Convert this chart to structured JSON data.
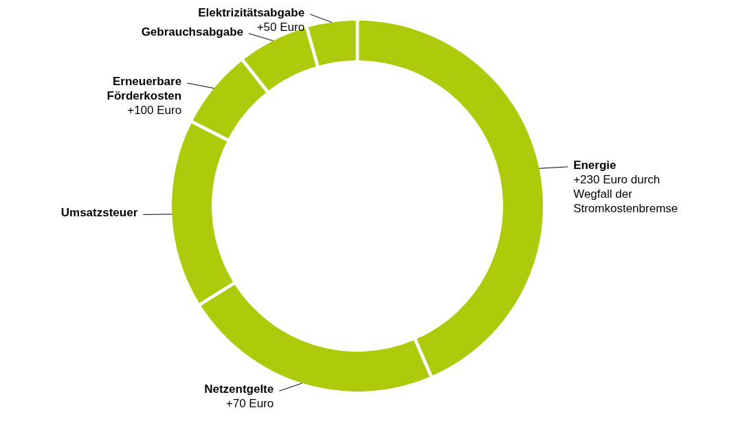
{
  "chart_data": {
    "type": "donut",
    "categories": [
      "Energie",
      "Netzentgelte",
      "Umsatzsteuer",
      "Erneuerbare Förderkosten",
      "Gebrauchsabgabe",
      "Elektrizitätsabgabe"
    ],
    "values": [
      43.5,
      22.6,
      16.4,
      6.9,
      6.2,
      4.4
    ],
    "colors": [
      "#afca0b",
      "#afca0b",
      "#afca0b",
      "#afca0b",
      "#afca0b",
      "#afca0b"
    ],
    "annotations": [
      {
        "text": "+230 Euro durch Wegfall der Stromkostenbremse",
        "x": "Energie"
      },
      {
        "text": "+70 Euro",
        "x": "Netzentgelte"
      },
      {
        "text": "+100 Euro",
        "x": "Erneuerbare Förderkosten"
      },
      {
        "text": "+50 Euro",
        "x": "Elektrizitätsabgabe"
      }
    ]
  }
}
